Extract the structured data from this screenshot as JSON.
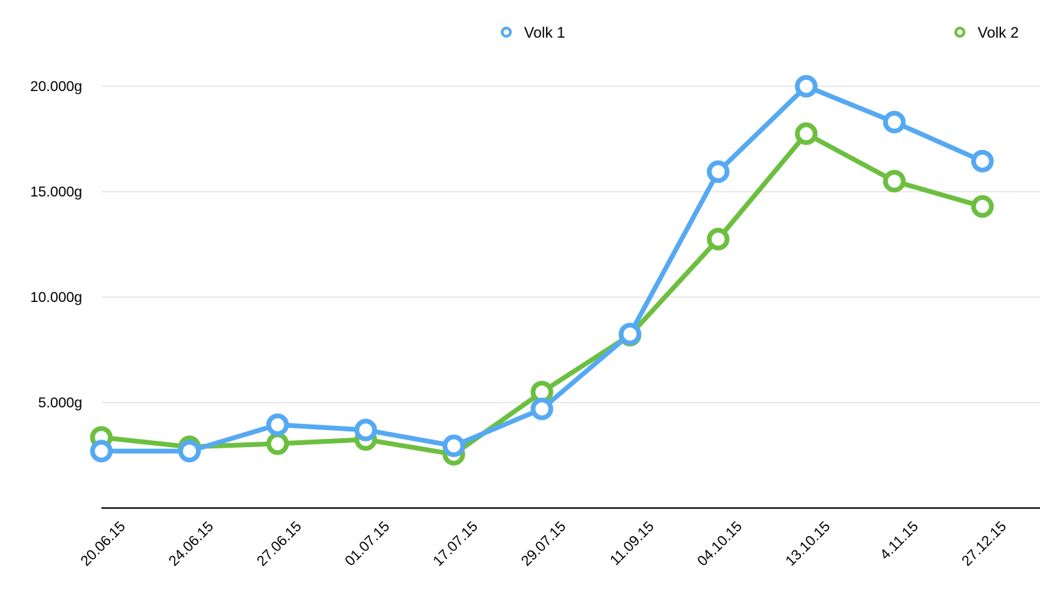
{
  "chart_data": {
    "type": "line",
    "title": "",
    "xlabel": "",
    "ylabel": "",
    "categories": [
      "20.06.15",
      "24.06.15",
      "27.06.15",
      "01.07.15",
      "17.07.15",
      "29.07.15",
      "11.09.15",
      "04.10.15",
      "13.10.15",
      "4.11.15",
      "27.12.15"
    ],
    "ylim": [
      0,
      20000
    ],
    "y_ticks": [
      {
        "value": 5000,
        "label": "5.000g"
      },
      {
        "value": 10000,
        "label": "10.000g"
      },
      {
        "value": 15000,
        "label": "15.000g"
      },
      {
        "value": 20000,
        "label": "20.000g"
      }
    ],
    "grid": true,
    "legend_position": "top",
    "series": [
      {
        "name": "Volk 1",
        "color": "#55a9f2",
        "values": [
          2700,
          2700,
          3950,
          3700,
          2950,
          4700,
          8250,
          15950,
          20000,
          18300,
          16450
        ]
      },
      {
        "name": "Volk 2",
        "color": "#6cbf3f",
        "values": [
          3350,
          2900,
          3050,
          3250,
          2550,
          5500,
          8200,
          12750,
          17750,
          15500,
          14300
        ]
      }
    ]
  }
}
